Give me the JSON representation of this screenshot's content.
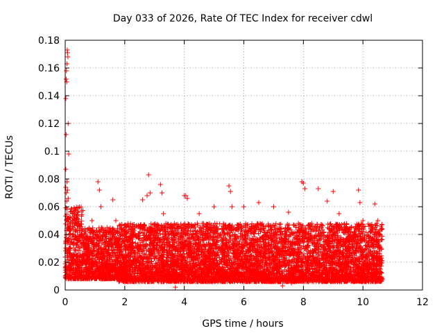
{
  "chart_data": {
    "type": "scatter",
    "title": "Day 033 of 2026, Rate Of TEC Index for receiver cdwl",
    "xlabel": "GPS time / hours",
    "ylabel": "ROTI / TECUs",
    "xlim": [
      0,
      12
    ],
    "ylim": [
      0,
      0.18
    ],
    "x_ticks": [
      "0",
      "2",
      "4",
      "6",
      "8",
      "10",
      "12"
    ],
    "y_ticks": [
      "0",
      "0.02",
      "0.04",
      "0.06",
      "0.08",
      "0.1",
      "0.12",
      "0.14",
      "0.16",
      "0.18"
    ],
    "grid": true,
    "marker": "+",
    "color": "#ff0000",
    "series": [
      {
        "points": [
          [
            0.02,
            0.138
          ],
          [
            0.03,
            0.152
          ],
          [
            0.04,
            0.158
          ],
          [
            0.05,
            0.15
          ],
          [
            0.06,
            0.163
          ],
          [
            0.07,
            0.173
          ],
          [
            0.08,
            0.171
          ],
          [
            0.09,
            0.168
          ],
          [
            0.1,
            0.12
          ],
          [
            0.12,
            0.098
          ],
          [
            0.03,
            0.112
          ],
          [
            0.02,
            0.087
          ],
          [
            0.02,
            0.074
          ],
          [
            0.04,
            0.07
          ],
          [
            0.06,
            0.078
          ],
          [
            0.08,
            0.072
          ],
          [
            0.1,
            0.066
          ],
          [
            0.05,
            0.064
          ],
          [
            0.9,
            0.05
          ],
          [
            1.1,
            0.078
          ],
          [
            1.15,
            0.072
          ],
          [
            1.2,
            0.06
          ],
          [
            1.6,
            0.065
          ],
          [
            1.7,
            0.05
          ],
          [
            2.6,
            0.065
          ],
          [
            2.75,
            0.068
          ],
          [
            2.8,
            0.083
          ],
          [
            2.85,
            0.07
          ],
          [
            3.2,
            0.076
          ],
          [
            3.25,
            0.07
          ],
          [
            3.3,
            0.055
          ],
          [
            4.0,
            0.068
          ],
          [
            4.05,
            0.068
          ],
          [
            4.1,
            0.066
          ],
          [
            4.5,
            0.055
          ],
          [
            5.0,
            0.06
          ],
          [
            5.5,
            0.075
          ],
          [
            5.55,
            0.071
          ],
          [
            5.6,
            0.06
          ],
          [
            6.0,
            0.06
          ],
          [
            6.5,
            0.063
          ],
          [
            7.0,
            0.06
          ],
          [
            7.5,
            0.056
          ],
          [
            7.95,
            0.078
          ],
          [
            8.0,
            0.077
          ],
          [
            8.05,
            0.073
          ],
          [
            8.5,
            0.073
          ],
          [
            8.8,
            0.064
          ],
          [
            9.0,
            0.071
          ],
          [
            9.2,
            0.055
          ],
          [
            9.85,
            0.072
          ],
          [
            9.9,
            0.063
          ],
          [
            10.0,
            0.05
          ],
          [
            10.4,
            0.062
          ],
          [
            10.5,
            0.05
          ],
          [
            3.7,
            0.002
          ],
          [
            7.3,
            0.003
          ],
          [
            7.6,
            0.005
          ]
        ]
      }
    ],
    "density": {
      "description_bands": [
        {
          "x_start": 0.0,
          "x_end": 0.6,
          "y_low": 0.008,
          "y_high": 0.06
        },
        {
          "x_start": 0.6,
          "x_end": 1.8,
          "y_low": 0.008,
          "y_high": 0.045
        },
        {
          "x_start": 1.8,
          "x_end": 10.65,
          "y_low": 0.006,
          "y_high": 0.048
        }
      ]
    }
  }
}
